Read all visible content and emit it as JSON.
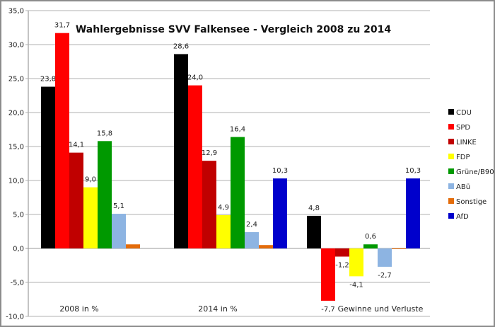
{
  "chart_data": {
    "type": "bar",
    "title": "Wahlergebnisse SVV Falkensee - Vergleich 2008 zu 2014",
    "xlabel": "",
    "ylabel": "",
    "ylim": [
      -10,
      35
    ],
    "yticks": [
      "-10,0",
      "-5,0",
      "0,0",
      "5,0",
      "10,0",
      "15,0",
      "20,0",
      "25,0",
      "30,0",
      "35,0"
    ],
    "ytick_values": [
      -10,
      -5,
      0,
      5,
      10,
      15,
      20,
      25,
      30,
      35
    ],
    "grid": true,
    "legend_position": "right",
    "categories": [
      "2008  in %",
      "2014  in %",
      "Gewinne und Verluste"
    ],
    "series": [
      {
        "name": "CDU",
        "color": "#000000",
        "values": [
          23.8,
          28.6,
          4.8
        ],
        "labels": [
          "23,8",
          "28,6",
          "4,8"
        ]
      },
      {
        "name": "SPD",
        "color": "#ff0000",
        "values": [
          31.7,
          24.0,
          -7.7
        ],
        "labels": [
          "31,7",
          "24,0",
          "-7,7"
        ]
      },
      {
        "name": "LINKE",
        "color": "#c00000",
        "values": [
          14.1,
          12.9,
          -1.2
        ],
        "labels": [
          "14,1",
          "12,9",
          "-1,2"
        ]
      },
      {
        "name": "FDP",
        "color": "#ffff00",
        "values": [
          9.0,
          4.9,
          -4.1
        ],
        "labels": [
          "9,0",
          "4,9",
          "-4,1"
        ]
      },
      {
        "name": "Grüne/B90",
        "color": "#009900",
        "values": [
          15.8,
          16.4,
          0.6
        ],
        "labels": [
          "15,8",
          "16,4",
          "0,6"
        ]
      },
      {
        "name": "ABü",
        "color": "#8db4e2",
        "values": [
          5.1,
          2.4,
          -2.7
        ],
        "labels": [
          "5,1",
          "2,4",
          "-2,7"
        ]
      },
      {
        "name": "Sonstige",
        "color": "#e46c0a",
        "values": [
          0.6,
          0.5,
          -0.1
        ],
        "labels": [
          "",
          "",
          ""
        ]
      },
      {
        "name": "AfD",
        "color": "#0000cc",
        "values": [
          null,
          10.3,
          10.3
        ],
        "labels": [
          "",
          "10,3",
          "10,3"
        ]
      }
    ]
  }
}
